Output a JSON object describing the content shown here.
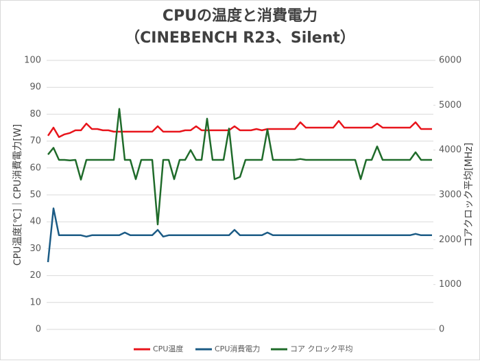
{
  "chart_data": {
    "type": "line",
    "title": "CPUの温度と消費電力",
    "subtitle": "（CINEBENCH R23、Silent）",
    "y_label": "CPU温度[℃]｜CPU消費電力[W]",
    "y2_label": "コアクロック平均[MHz]",
    "ylim": [
      0,
      100
    ],
    "yticks": [
      0,
      10,
      20,
      30,
      40,
      50,
      60,
      70,
      80,
      90,
      100
    ],
    "y2lim": [
      0,
      6000
    ],
    "y2ticks": [
      0,
      1000,
      2000,
      3000,
      4000,
      5000,
      6000
    ],
    "grid": true,
    "legend": "bottom",
    "series": [
      {
        "name": "CPU温度",
        "color": "#e8141b",
        "values": [
          72,
          75,
          71.5,
          72.5,
          73,
          74,
          74,
          76.5,
          74.5,
          74.5,
          74,
          74,
          73.5,
          73.5,
          73.5,
          73.5,
          73.5,
          73.5,
          73.5,
          73.5,
          75.5,
          73.5,
          73.5,
          73.5,
          73.5,
          74,
          74,
          75.5,
          74,
          74,
          74,
          74,
          74,
          74,
          75.5,
          74,
          74,
          74,
          74.5,
          74,
          74.5,
          74.5,
          74.5,
          74.5,
          74.5,
          74.5,
          77,
          75,
          75,
          75,
          75,
          75,
          75,
          77.5,
          75,
          75,
          75,
          75,
          75,
          75,
          76.5,
          75,
          75,
          75,
          75,
          75,
          75,
          77,
          74.5,
          74.5,
          74.5
        ]
      },
      {
        "name": "CPU消費電力",
        "color": "#1b5b85",
        "values": [
          25,
          45,
          35,
          35,
          35,
          35,
          35,
          34.5,
          35,
          35,
          35,
          35,
          35,
          35,
          36,
          35,
          35,
          35,
          35,
          35,
          37,
          34.5,
          35,
          35,
          35,
          35,
          35,
          35,
          35,
          35,
          35,
          35,
          35,
          35,
          37,
          35,
          35,
          35,
          35,
          35,
          36,
          35,
          35,
          35,
          35,
          35,
          35,
          35,
          35,
          35,
          35,
          35,
          35,
          35,
          35,
          35,
          35,
          35,
          35,
          35,
          35,
          35,
          35,
          35,
          35,
          35,
          35,
          35.5,
          35,
          35,
          35
        ]
      },
      {
        "name": "コア クロック平均",
        "color": "#1f6b2a",
        "axis": "y2",
        "values": [
          3900,
          4050,
          3780,
          3780,
          3770,
          3780,
          3340,
          3780,
          3780,
          3780,
          3780,
          3780,
          3780,
          4920,
          3780,
          3780,
          3350,
          3780,
          3780,
          3780,
          2340,
          3780,
          3780,
          3350,
          3780,
          3780,
          4000,
          3780,
          3780,
          4700,
          3780,
          3780,
          3780,
          4480,
          3350,
          3400,
          3780,
          3780,
          3780,
          3780,
          4460,
          3780,
          3780,
          3780,
          3780,
          3780,
          3800,
          3780,
          3780,
          3780,
          3780,
          3780,
          3780,
          3780,
          3780,
          3780,
          3780,
          3350,
          3780,
          3780,
          4080,
          3780,
          3780,
          3780,
          3780,
          3780,
          3780,
          3950,
          3780,
          3780,
          3780
        ]
      }
    ]
  }
}
